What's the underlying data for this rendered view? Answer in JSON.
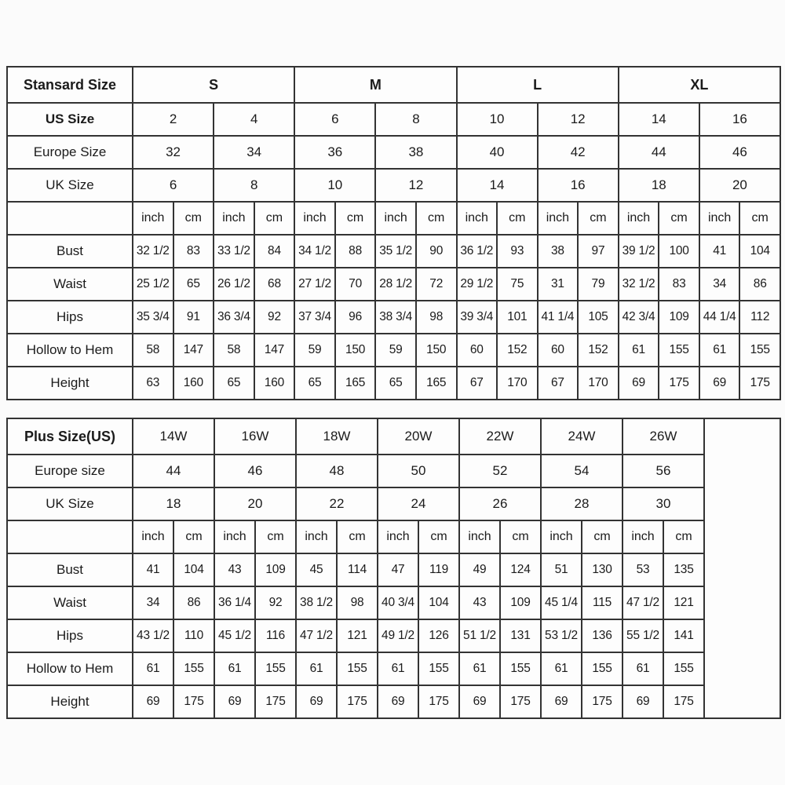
{
  "colors": {
    "background": "#fbfbfb",
    "table_background": "#fdfdfd",
    "border": "#333333",
    "text": "#1b1b1b"
  },
  "chart_data": [
    {
      "type": "table",
      "title": "Stansard Size",
      "corner_label": "Stansard Size",
      "groups": [
        "S",
        "M",
        "L",
        "XL"
      ],
      "groups_bold": true,
      "pairs_per_group": 2,
      "label_col_width": 160,
      "trailing_empty_col_width": 0,
      "unit_labels": [
        "inch",
        "cm"
      ],
      "pair_header_rows": [
        {
          "label": "US Size",
          "bold": true,
          "values": [
            "2",
            "4",
            "6",
            "8",
            "10",
            "12",
            "14",
            "16"
          ]
        },
        {
          "label": "Europe Size",
          "bold": false,
          "values": [
            "32",
            "34",
            "36",
            "38",
            "40",
            "42",
            "44",
            "46"
          ]
        },
        {
          "label": "UK Size",
          "bold": false,
          "values": [
            "6",
            "8",
            "10",
            "12",
            "14",
            "16",
            "18",
            "20"
          ]
        }
      ],
      "measure_rows": [
        {
          "label": "Bust",
          "values": [
            "32 1/2",
            "83",
            "33 1/2",
            "84",
            "34 1/2",
            "88",
            "35 1/2",
            "90",
            "36 1/2",
            "93",
            "38",
            "97",
            "39 1/2",
            "100",
            "41",
            "104"
          ]
        },
        {
          "label": "Waist",
          "values": [
            "25 1/2",
            "65",
            "26 1/2",
            "68",
            "27 1/2",
            "70",
            "28 1/2",
            "72",
            "29 1/2",
            "75",
            "31",
            "79",
            "32 1/2",
            "83",
            "34",
            "86"
          ]
        },
        {
          "label": "Hips",
          "values": [
            "35 3/4",
            "91",
            "36 3/4",
            "92",
            "37 3/4",
            "96",
            "38 3/4",
            "98",
            "39 3/4",
            "101",
            "41 1/4",
            "105",
            "42 3/4",
            "109",
            "44 1/4",
            "112"
          ]
        },
        {
          "label": "Hollow to Hem",
          "values": [
            "58",
            "147",
            "58",
            "147",
            "59",
            "150",
            "59",
            "150",
            "60",
            "152",
            "60",
            "152",
            "61",
            "155",
            "61",
            "155"
          ]
        },
        {
          "label": "Height",
          "values": [
            "63",
            "160",
            "65",
            "160",
            "65",
            "165",
            "65",
            "165",
            "67",
            "170",
            "67",
            "170",
            "69",
            "175",
            "69",
            "175"
          ]
        }
      ]
    },
    {
      "type": "table",
      "title": "Plus Size(US)",
      "corner_label": "Plus Size(US)",
      "groups": [
        "14W",
        "16W",
        "18W",
        "20W",
        "22W",
        "24W",
        "26W"
      ],
      "groups_bold": false,
      "pairs_per_group": 1,
      "label_col_width": 160,
      "trailing_empty_col_width": 97,
      "unit_labels": [
        "inch",
        "cm"
      ],
      "pair_header_rows": [
        {
          "label": "Europe size",
          "bold": false,
          "values": [
            "44",
            "46",
            "48",
            "50",
            "52",
            "54",
            "56"
          ]
        },
        {
          "label": "UK Size",
          "bold": false,
          "values": [
            "18",
            "20",
            "22",
            "24",
            "26",
            "28",
            "30"
          ]
        }
      ],
      "measure_rows": [
        {
          "label": "Bust",
          "values": [
            "41",
            "104",
            "43",
            "109",
            "45",
            "114",
            "47",
            "119",
            "49",
            "124",
            "51",
            "130",
            "53",
            "135"
          ]
        },
        {
          "label": "Waist",
          "values": [
            "34",
            "86",
            "36 1/4",
            "92",
            "38 1/2",
            "98",
            "40 3/4",
            "104",
            "43",
            "109",
            "45 1/4",
            "115",
            "47 1/2",
            "121"
          ]
        },
        {
          "label": "Hips",
          "values": [
            "43 1/2",
            "110",
            "45 1/2",
            "116",
            "47 1/2",
            "121",
            "49 1/2",
            "126",
            "51 1/2",
            "131",
            "53 1/2",
            "136",
            "55 1/2",
            "141"
          ]
        },
        {
          "label": "Hollow to Hem",
          "values": [
            "61",
            "155",
            "61",
            "155",
            "61",
            "155",
            "61",
            "155",
            "61",
            "155",
            "61",
            "155",
            "61",
            "155"
          ]
        },
        {
          "label": "Height",
          "values": [
            "69",
            "175",
            "69",
            "175",
            "69",
            "175",
            "69",
            "175",
            "69",
            "175",
            "69",
            "175",
            "69",
            "175"
          ]
        }
      ]
    }
  ]
}
